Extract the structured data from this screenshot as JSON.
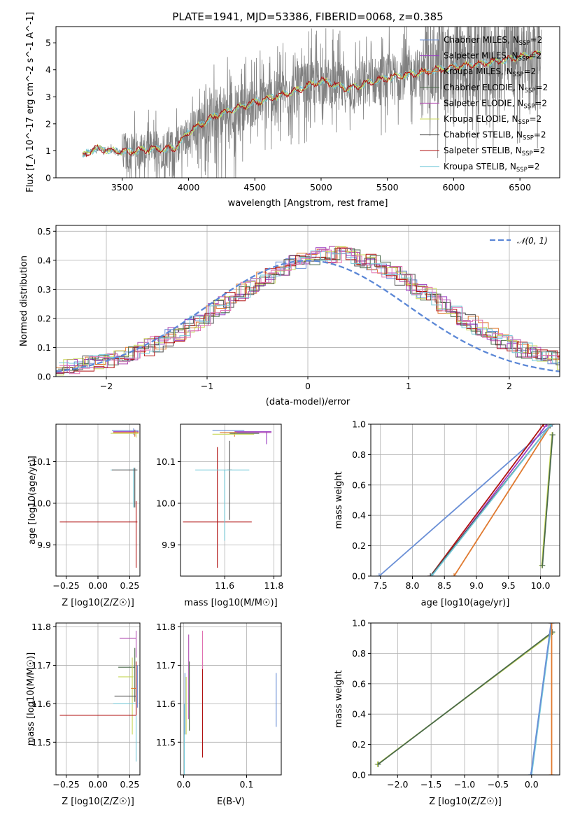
{
  "colors": {
    "chabrier_miles": "#6a8fd6",
    "salpeter_miles": "#9a3cc2",
    "kroupa_miles": "#e07a30",
    "chabrier_elodie": "#4a6a4a",
    "salpeter_elodie": "#b04ab0",
    "kroupa_elodie": "#c8d85a",
    "chabrier_stelib": "#505050",
    "salpeter_stelib": "#b01010",
    "kroupa_stelib": "#70c8d8",
    "data": "#808080",
    "gauss": "#5b87d6",
    "extra": "#e070b0"
  },
  "chart_data": [
    {
      "id": "spectrum",
      "type": "line",
      "title": "PLATE=1941, MJD=53386, FIBERID=0068, z=0.385",
      "xlabel": "wavelength [Angstrom, rest frame]",
      "ylabel": "Flux [f_λ 10^-17 erg cm^-2 s^-1 A^-1]",
      "xlim": [
        3000,
        6800
      ],
      "ylim": [
        0,
        5.6
      ],
      "xticks": [
        "3500",
        "4000",
        "4500",
        "5000",
        "5500",
        "6000",
        "6500"
      ],
      "yticks": [
        "0",
        "1",
        "2",
        "3",
        "4",
        "5"
      ],
      "legend_position": "right",
      "legend": [
        {
          "label": "Chabrier MILES, N",
          "sub": "SSP",
          "tail": "=2"
        },
        {
          "label": "Salpeter MILES, N",
          "sub": "SSP",
          "tail": "=2"
        },
        {
          "label": "Kroupa MILES, N",
          "sub": "SSP",
          "tail": "=2"
        },
        {
          "label": "Chabrier ELODIE, N",
          "sub": "SSP",
          "tail": "=2"
        },
        {
          "label": "Salpeter ELODIE, N",
          "sub": "SSP",
          "tail": "=2"
        },
        {
          "label": "Kroupa ELODIE, N",
          "sub": "SSP",
          "tail": "=2"
        },
        {
          "label": "Chabrier STELIB, N",
          "sub": "SSP",
          "tail": "=2"
        },
        {
          "label": "Salpeter STELIB, N",
          "sub": "SSP",
          "tail": "=2"
        },
        {
          "label": "Kroupa STELIB, N",
          "sub": "SSP",
          "tail": "=2"
        }
      ],
      "model_trend": {
        "x": [
          3200,
          3300,
          3500,
          3700,
          3900,
          4000,
          4200,
          4500,
          4800,
          5000,
          5200,
          5500,
          6000,
          6300,
          6650
        ],
        "y": [
          0.8,
          1.1,
          0.95,
          1.05,
          1.1,
          1.7,
          2.3,
          2.8,
          3.2,
          3.6,
          3.3,
          3.7,
          4.1,
          4.3,
          4.6
        ]
      }
    },
    {
      "id": "residuals",
      "type": "line",
      "xlabel": "(data-model)/error",
      "ylabel": "Normed distribution",
      "xlim": [
        -2.5,
        2.5
      ],
      "ylim": [
        0,
        0.52
      ],
      "xticks": [
        "−2",
        "−1",
        "0",
        "1",
        "2"
      ],
      "yticks": [
        "0.0",
        "0.1",
        "0.2",
        "0.3",
        "0.4",
        "0.5"
      ],
      "legend_position": "top-right",
      "legend": "𝒩(0, 1)",
      "gaussian": {
        "mean": 0,
        "sigma": 1
      }
    },
    {
      "id": "age_vs_Z",
      "type": "scatter",
      "xlabel": "Z [log10(Z/Z☉)]",
      "ylabel": "age [log10(age/yr)]",
      "xlim": [
        -0.33,
        0.33
      ],
      "ylim": [
        9.825,
        10.19
      ],
      "xticks": [
        "−0.25",
        "0.00",
        "0.25"
      ],
      "yticks": [
        "9.9",
        "10.0",
        "10.1"
      ],
      "points": [
        {
          "x": 0.28,
          "xerr": [
            0.17,
            0.04
          ],
          "y": 10.175,
          "yerr": [
            0.01,
            0.005
          ],
          "c": "chabrier_miles"
        },
        {
          "x": 0.29,
          "xerr": [
            0.17,
            0.03
          ],
          "y": 10.172,
          "yerr": [
            0.01,
            0.005
          ],
          "c": "salpeter_miles"
        },
        {
          "x": 0.29,
          "xerr": [
            0.17,
            0.03
          ],
          "y": 10.17,
          "yerr": [
            0.01,
            0.005
          ],
          "c": "kroupa_miles"
        },
        {
          "x": 0.3,
          "xerr": [
            0.2,
            0.02
          ],
          "y": 10.168,
          "yerr": [
            0.01,
            0.005
          ],
          "c": "kroupa_elodie"
        },
        {
          "x": 0.28,
          "xerr": [
            0.18,
            0.03
          ],
          "y": 10.08,
          "yerr": [
            0.09,
            0.005
          ],
          "c": "kroupa_stelib"
        },
        {
          "x": 0.29,
          "xerr": [
            0.18,
            0.02
          ],
          "y": 10.08,
          "yerr": [
            0.09,
            0.005
          ],
          "c": "chabrier_stelib"
        },
        {
          "x": 0.3,
          "xerr": [
            0.6,
            0.01
          ],
          "y": 9.955,
          "yerr": [
            0.11,
            0.05
          ],
          "c": "salpeter_stelib"
        }
      ]
    },
    {
      "id": "age_vs_mass",
      "type": "scatter",
      "xlabel": "mass [log10(M/M☉)]",
      "ylabel": "",
      "xlim": [
        11.42,
        11.83
      ],
      "ylim": [
        9.825,
        10.19
      ],
      "xticks": [
        "11.6",
        "11.8"
      ],
      "yticks": [
        "9.9",
        "10.0",
        "10.1"
      ],
      "points": [
        {
          "x": 11.62,
          "xerr": [
            0.07,
            0.06
          ],
          "y": 10.175,
          "yerr": [
            0.0,
            0.0
          ],
          "c": "chabrier_miles"
        },
        {
          "x": 11.77,
          "xerr": [
            0.13,
            0.02
          ],
          "y": 10.172,
          "yerr": [
            0.03,
            0.0
          ],
          "c": "salpeter_miles"
        },
        {
          "x": 11.64,
          "xerr": [
            0.06,
            0.05
          ],
          "y": 10.17,
          "yerr": [
            0.01,
            0.0
          ],
          "c": "kroupa_miles"
        },
        {
          "x": 11.69,
          "xerr": [
            0.07,
            0.05
          ],
          "y": 10.168,
          "yerr": [
            0.0,
            0.0
          ],
          "c": "chabrier_elodie"
        },
        {
          "x": 11.77,
          "xerr": [
            0.12,
            0.02
          ],
          "y": 10.17,
          "yerr": [
            0.0,
            0.0
          ],
          "c": "salpeter_elodie"
        },
        {
          "x": 11.67,
          "xerr": [
            0.12,
            0.05
          ],
          "y": 10.166,
          "yerr": [
            0.0,
            0.0
          ],
          "c": "kroupa_elodie"
        },
        {
          "x": 11.62,
          "xerr": [
            0.01,
            0.01
          ],
          "y": 10.08,
          "yerr": [
            0.12,
            0.07
          ],
          "c": "chabrier_stelib"
        },
        {
          "x": 11.57,
          "xerr": [
            0.14,
            0.14
          ],
          "y": 9.955,
          "yerr": [
            0.11,
            0.18
          ],
          "c": "salpeter_stelib"
        },
        {
          "x": 11.6,
          "xerr": [
            0.12,
            0.1
          ],
          "y": 10.08,
          "yerr": [
            0.17,
            0.0
          ],
          "c": "kroupa_stelib"
        }
      ]
    },
    {
      "id": "weight_vs_age",
      "type": "line",
      "xlabel": "age [log10(age/yr)]",
      "ylabel": "mass weight",
      "xlim": [
        7.35,
        10.3
      ],
      "ylim": [
        0,
        1.0
      ],
      "xticks": [
        "7.5",
        "8.0",
        "8.5",
        "9.0",
        "9.5",
        "10.0"
      ],
      "yticks": [
        "0.0",
        "0.2",
        "0.4",
        "0.6",
        "0.8",
        "1.0"
      ],
      "series": [
        {
          "c": "chabrier_miles",
          "x": [
            7.48,
            10.18
          ],
          "y": [
            0.0,
            1.0
          ]
        },
        {
          "c": "salpeter_miles",
          "x": [
            8.3,
            10.1
          ],
          "y": [
            0.0,
            1.0
          ]
        },
        {
          "c": "kroupa_miles",
          "x": [
            8.65,
            10.17
          ],
          "y": [
            0.0,
            1.0
          ]
        },
        {
          "c": "salpeter_stelib",
          "x": [
            8.28,
            10.05
          ],
          "y": [
            0.0,
            1.0
          ]
        },
        {
          "c": "chabrier_stelib",
          "x": [
            8.28,
            10.15
          ],
          "y": [
            0.0,
            0.99
          ]
        },
        {
          "c": "kroupa_stelib",
          "x": [
            8.3,
            10.17
          ],
          "y": [
            0.0,
            1.0
          ]
        },
        {
          "c": "kroupa_elodie",
          "x": [
            10.02,
            10.18
          ],
          "y": [
            0.07,
            0.93
          ]
        },
        {
          "c": "chabrier_elodie",
          "x": [
            10.03,
            10.19
          ],
          "y": [
            0.07,
            0.93
          ]
        }
      ]
    },
    {
      "id": "mass_vs_Z",
      "type": "scatter",
      "xlabel": "Z [log10(Z/Z☉)]",
      "ylabel": "mass [log10(M/M☉)]",
      "xlim": [
        -0.33,
        0.33
      ],
      "ylim": [
        11.415,
        11.81
      ],
      "xticks": [
        "−0.25",
        "0.00",
        "0.25"
      ],
      "yticks": [
        "11.5",
        "11.6",
        "11.7",
        "11.8"
      ],
      "points": [
        {
          "x": 0.3,
          "xerr": [
            0.13,
            0.0
          ],
          "y": 11.77,
          "yerr": [
            0.05,
            0.02
          ],
          "c": "salpeter_elodie"
        },
        {
          "x": 0.29,
          "xerr": [
            0.13,
            0.0
          ],
          "y": 11.695,
          "yerr": [
            0.09,
            0.05
          ],
          "c": "chabrier_elodie"
        },
        {
          "x": 0.27,
          "xerr": [
            0.11,
            0.01
          ],
          "y": 11.67,
          "yerr": [
            0.15,
            0.05
          ],
          "c": "kroupa_elodie"
        },
        {
          "x": 0.3,
          "xerr": [
            0.04,
            0.0
          ],
          "y": 11.64,
          "yerr": [
            0.0,
            0.0
          ],
          "c": "kroupa_miles"
        },
        {
          "x": 0.3,
          "xerr": [
            0.17,
            0.0
          ],
          "y": 11.62,
          "yerr": [
            0.0,
            0.0
          ],
          "c": "chabrier_stelib"
        },
        {
          "x": 0.3,
          "xerr": [
            0.18,
            0.0
          ],
          "y": 11.6,
          "yerr": [
            0.15,
            0.0
          ],
          "c": "kroupa_stelib"
        },
        {
          "x": 0.3,
          "xerr": [
            0.6,
            0.0
          ],
          "y": 11.57,
          "yerr": [
            0.0,
            0.14
          ],
          "c": "salpeter_stelib"
        },
        {
          "x": 0.31,
          "xerr": [
            0.0,
            0.0
          ],
          "y": 11.67,
          "yerr": [
            0.08,
            0.03
          ],
          "c": "chabrier_miles"
        }
      ]
    },
    {
      "id": "mass_vs_ebv",
      "type": "scatter",
      "xlabel": "E(B-V)",
      "ylabel": "",
      "xlim": [
        -0.005,
        0.155
      ],
      "ylim": [
        11.415,
        11.81
      ],
      "xticks": [
        "0.0",
        "0.1"
      ],
      "yticks": [
        "11.5",
        "11.6",
        "11.7",
        "11.8"
      ],
      "points": [
        {
          "x": 0.001,
          "y": 11.6,
          "yerr": [
            0.19,
            0.0
          ],
          "c": "kroupa_stelib"
        },
        {
          "x": 0.002,
          "y": 11.6,
          "yerr": [
            0.08,
            0.08
          ],
          "c": "chabrier_miles"
        },
        {
          "x": 0.004,
          "y": 11.62,
          "yerr": [
            0.1,
            0.05
          ],
          "c": "kroupa_elodie"
        },
        {
          "x": 0.008,
          "y": 11.71,
          "yerr": [
            0.15,
            0.07
          ],
          "c": "salpeter_elodie"
        },
        {
          "x": 0.009,
          "y": 11.62,
          "yerr": [
            0.09,
            0.09
          ],
          "c": "chabrier_elodie"
        },
        {
          "x": 0.03,
          "y": 11.58,
          "yerr": [
            0.12,
            0.13
          ],
          "c": "salpeter_stelib"
        },
        {
          "x": 0.03,
          "y": 11.77,
          "yerr": [
            0.08,
            0.02
          ],
          "c": "extra"
        },
        {
          "x": 0.147,
          "y": 11.61,
          "yerr": [
            0.07,
            0.07
          ],
          "c": "chabrier_miles"
        }
      ]
    },
    {
      "id": "weight_vs_Z",
      "type": "line",
      "xlabel": "Z [log10(Z/Z☉)]",
      "ylabel": "mass weight",
      "xlim": [
        -2.4,
        0.42
      ],
      "ylim": [
        0,
        1.0
      ],
      "xticks": [
        "−2.0",
        "−1.5",
        "−1.0",
        "−0.5",
        "0.0"
      ],
      "yticks": [
        "0.0",
        "0.2",
        "0.4",
        "0.6",
        "0.8",
        "1.0"
      ],
      "series": [
        {
          "c": "kroupa_elodie",
          "x": [
            -2.3,
            0.3
          ],
          "y": [
            0.07,
            0.93
          ]
        },
        {
          "c": "chabrier_elodie",
          "x": [
            -2.29,
            0.31
          ],
          "y": [
            0.07,
            0.94
          ]
        },
        {
          "c": "kroupa_stelib",
          "x": [
            0.0,
            0.3
          ],
          "y": [
            0.0,
            1.0
          ]
        },
        {
          "c": "chabrier_miles",
          "x": [
            -0.01,
            0.29
          ],
          "y": [
            0.0,
            1.0
          ]
        },
        {
          "c": "kroupa_miles",
          "x": [
            0.3,
            0.3
          ],
          "y": [
            0.0,
            1.0
          ]
        }
      ]
    }
  ]
}
